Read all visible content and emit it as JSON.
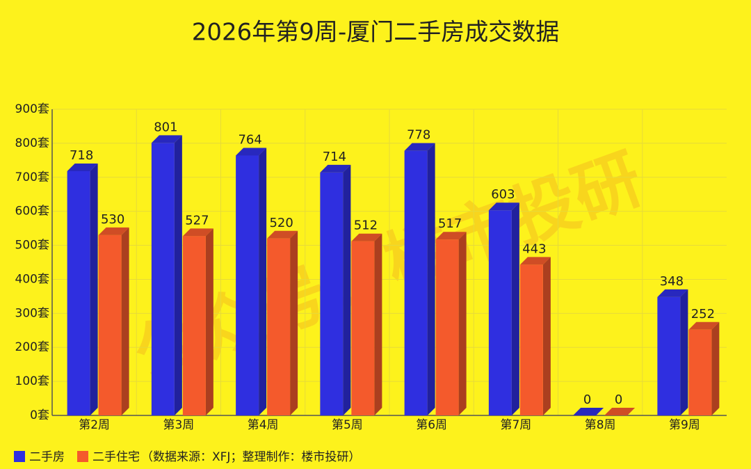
{
  "chart_data": {
    "type": "bar3d",
    "title": "2026年第9周-厦门二手房成交数据",
    "categories": [
      "第2周",
      "第3周",
      "第4周",
      "第5周",
      "第6周",
      "第7周",
      "第8周",
      "第9周"
    ],
    "series": [
      {
        "name": "二手房",
        "color": "#2f2fe0",
        "values": [
          718,
          801,
          764,
          714,
          778,
          603,
          0,
          348
        ]
      },
      {
        "name": "二手住宅",
        "color": "#f45a2c",
        "values": [
          530,
          527,
          520,
          512,
          517,
          443,
          0,
          252
        ]
      }
    ],
    "source": "（数据来源：XFJ；整理制作：楼市投研）",
    "watermark": "公众号：楼市投研",
    "ylim": [
      0,
      900
    ],
    "yticks": [
      {
        "value": 0,
        "label": "0套"
      },
      {
        "value": 100,
        "label": "100套"
      },
      {
        "value": 200,
        "label": "200套"
      },
      {
        "value": 300,
        "label": "300套"
      },
      {
        "value": 400,
        "label": "400套"
      },
      {
        "value": 500,
        "label": "500套"
      },
      {
        "value": 600,
        "label": "600套"
      },
      {
        "value": 700,
        "label": "700套"
      },
      {
        "value": 800,
        "label": "800套"
      },
      {
        "value": 900,
        "label": "900套"
      }
    ],
    "grid": true
  }
}
